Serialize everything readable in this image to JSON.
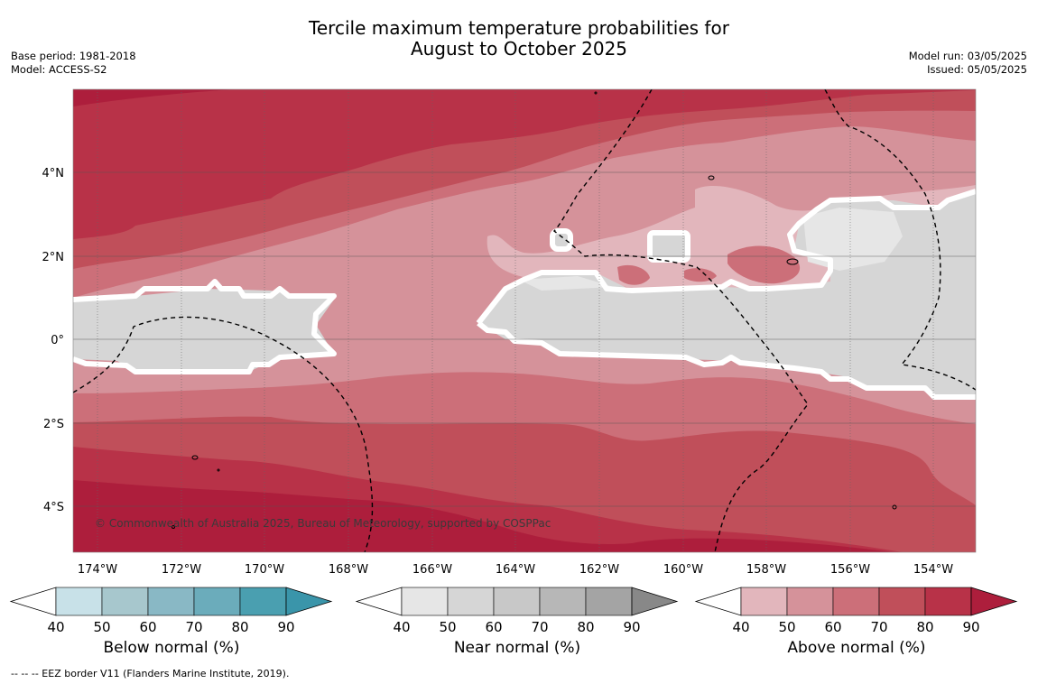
{
  "title": {
    "line1": "Tercile maximum temperature probabilities for",
    "line2": "August to October 2025"
  },
  "info_left": {
    "base_period": "Base period: 1981-2018",
    "model": "Model: ACCESS-S2"
  },
  "info_right": {
    "model_run": "Model run: 03/05/2025",
    "issued": "Issued: 05/05/2025"
  },
  "map": {
    "lon_labels": [
      "174°W",
      "172°W",
      "170°W",
      "168°W",
      "166°W",
      "164°W",
      "162°W",
      "160°W",
      "158°W",
      "156°W",
      "154°W"
    ],
    "lat_labels": [
      "4°N",
      "2°N",
      "0°",
      "2°S",
      "4°S"
    ],
    "copyright": "© Commonwealth of Australia 2025, Bureau of Meteorology, supported by COSPPac"
  },
  "colorbars": [
    {
      "title": "Below normal (%)",
      "ticks": [
        "40",
        "50",
        "60",
        "70",
        "80",
        "90"
      ],
      "colors": [
        "#ffffff",
        "#c8e1e8",
        "#a7c7cd",
        "#89b8c5",
        "#6bacbb",
        "#4a9fb0",
        "#3a95aa"
      ]
    },
    {
      "title": "Near normal (%)",
      "ticks": [
        "40",
        "50",
        "60",
        "70",
        "80",
        "90"
      ],
      "colors": [
        "#ffffff",
        "#e6e6e6",
        "#d6d6d6",
        "#c8c8c8",
        "#b7b7b7",
        "#a4a4a4",
        "#888888"
      ]
    },
    {
      "title": "Above normal (%)",
      "ticks": [
        "40",
        "50",
        "60",
        "70",
        "80",
        "90"
      ],
      "colors": [
        "#ffffff",
        "#e2b6bc",
        "#d5929a",
        "#cc6f79",
        "#c04f5a",
        "#b83248",
        "#ad1e3c"
      ]
    }
  ],
  "footer": "--  --  -- EEZ border V11 (Flanders Marine Institute, 2019)."
}
